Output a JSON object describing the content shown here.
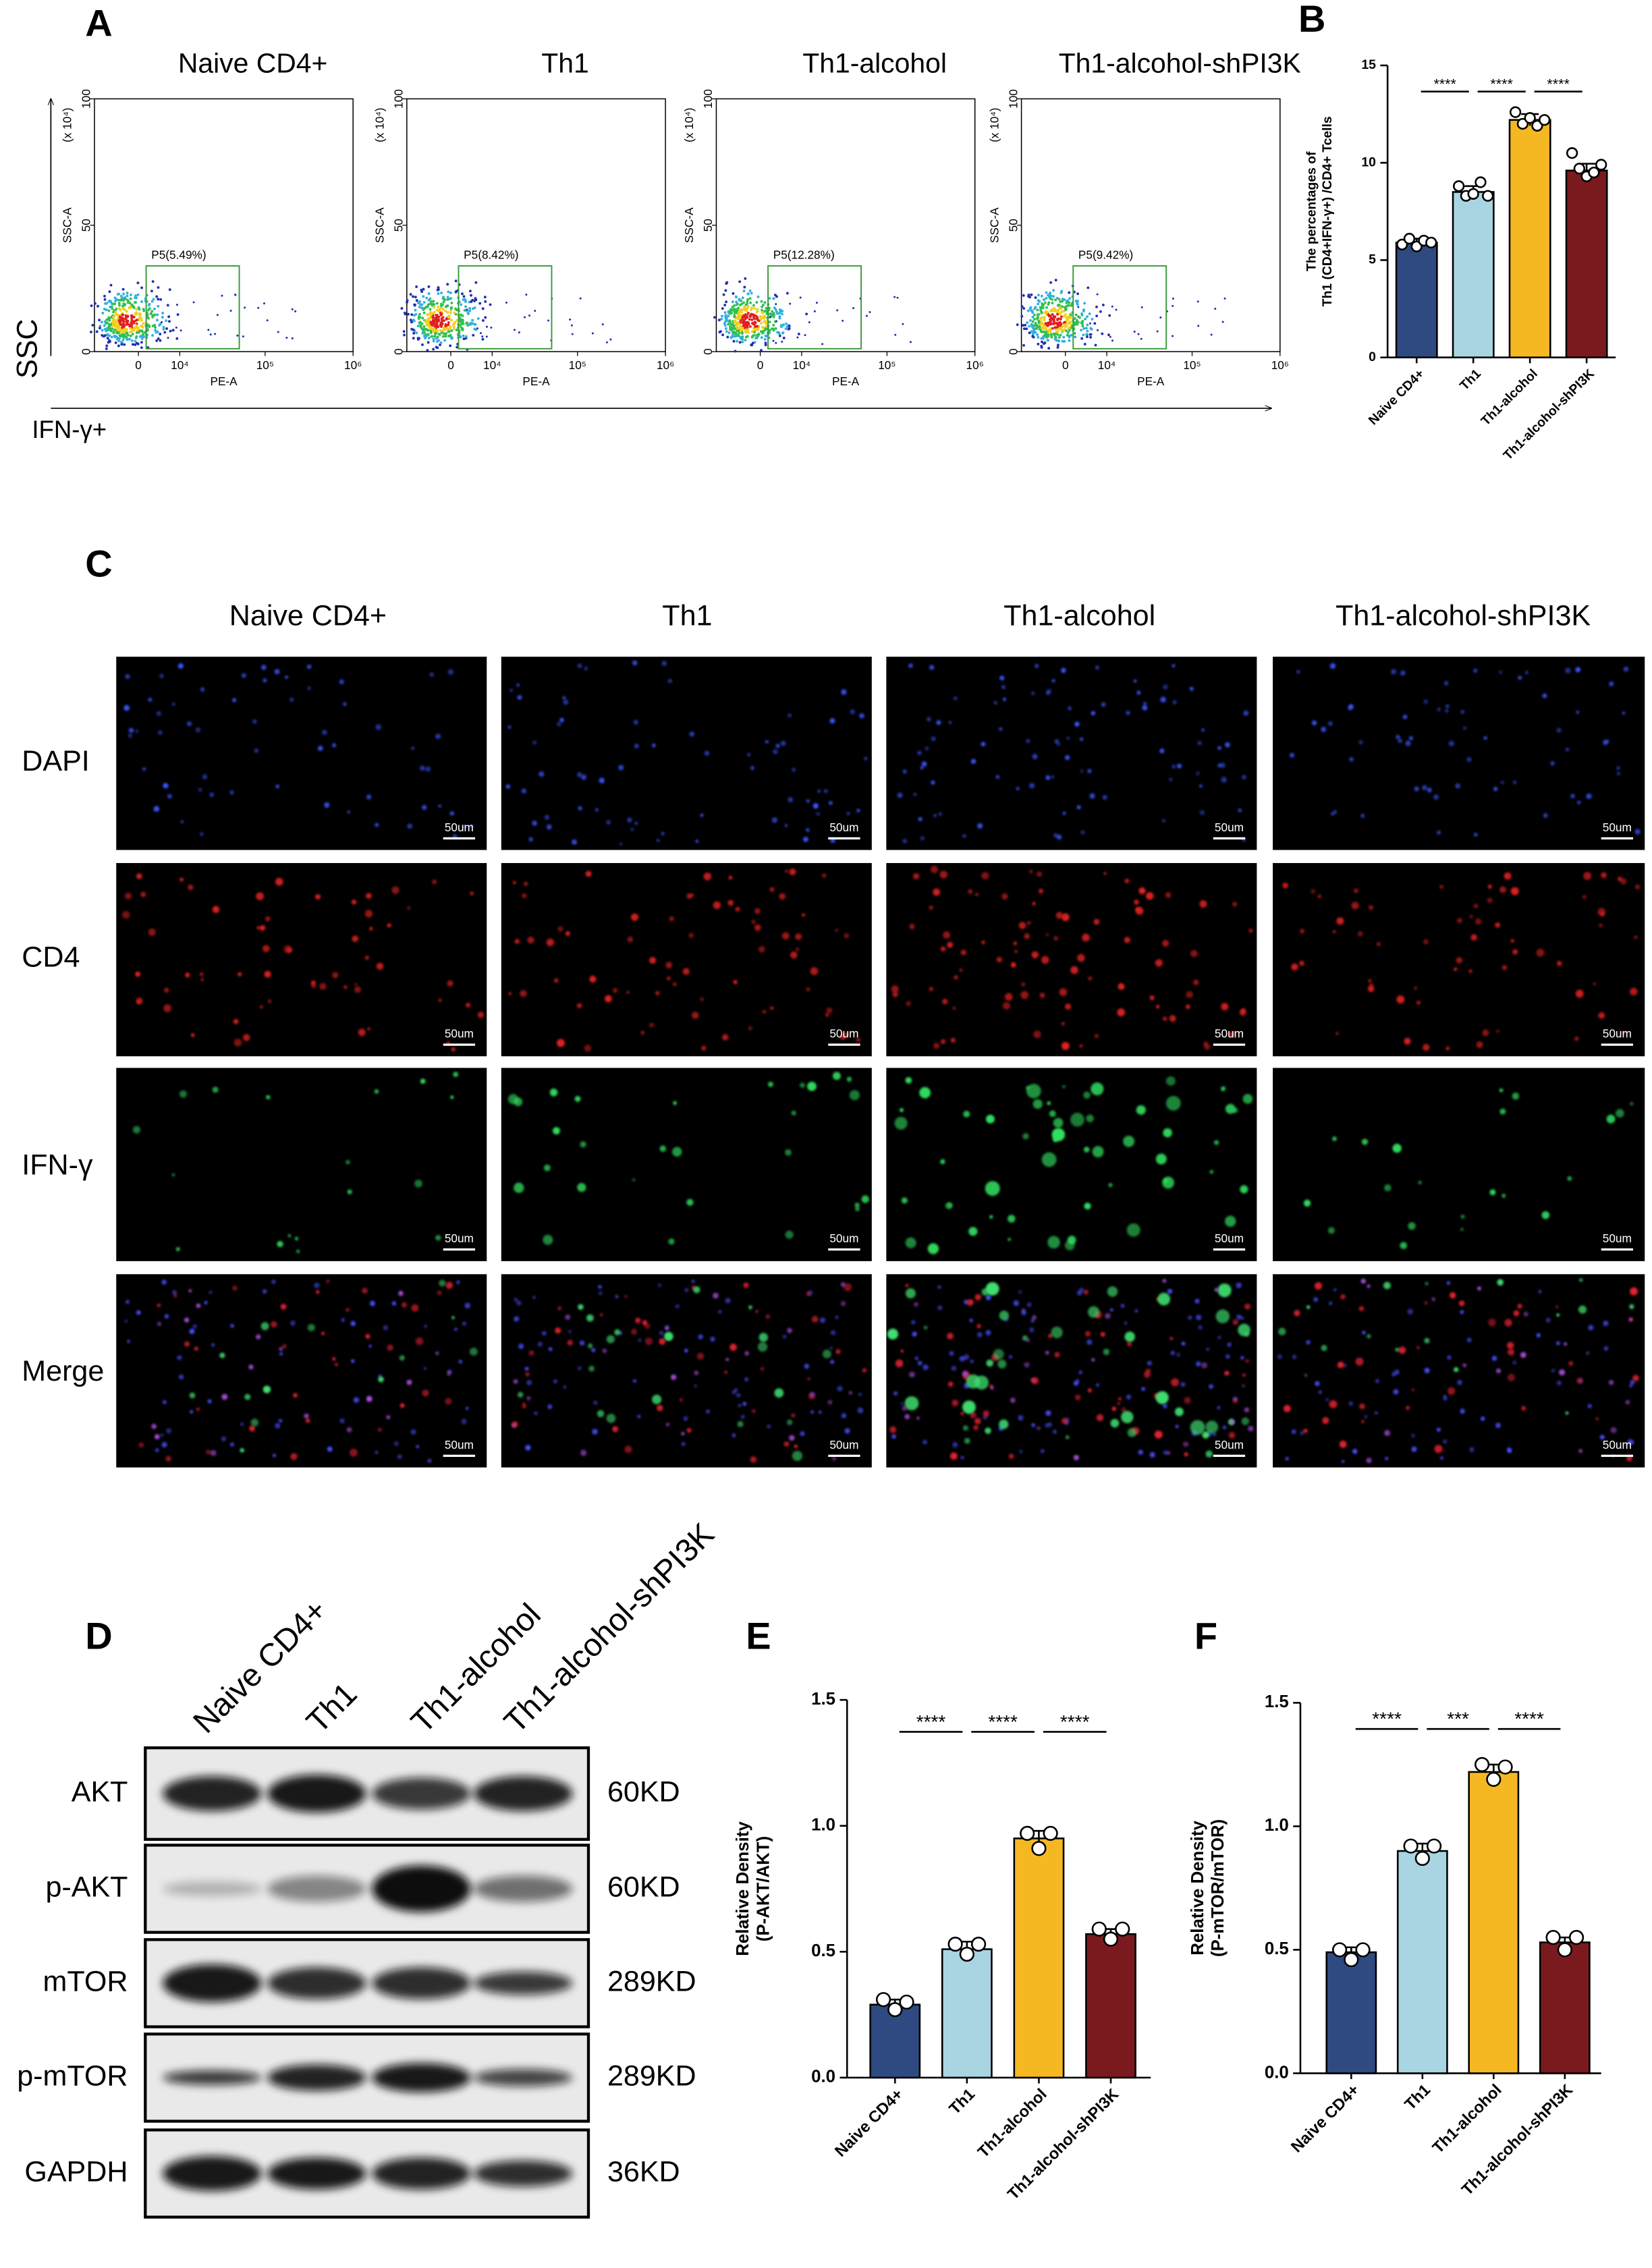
{
  "panel_labels": [
    "A",
    "B",
    "C",
    "D",
    "E",
    "F"
  ],
  "flow": {
    "y_axis_label": "SSC",
    "x_axis_label": "IFN-γ+",
    "plot_y_label": "SSC-A",
    "plot_x_label": "PE-A",
    "y_scale_note": "(x 10⁴)",
    "yticks": [
      "0",
      "50",
      "100"
    ],
    "xticks": [
      "0",
      "10⁴",
      "10⁵",
      "10⁶"
    ],
    "plots": [
      {
        "title": "Naive CD4+",
        "gate": "P5(5.49%)"
      },
      {
        "title": "Th1",
        "gate": "P5(8.42%)"
      },
      {
        "title": "Th1-alcohol",
        "gate": "P5(12.28%)"
      },
      {
        "title": "Th1-alcohol-shPI3K",
        "gate": "P5(9.42%)"
      }
    ]
  },
  "chart_data": [
    {
      "type": "bar",
      "ylabel": [
        "The percentages of",
        "Th1 (CD4+IFN-γ+) /CD4+ Tcells"
      ],
      "categories": [
        "Naive CD4+",
        "Th1",
        "Th1-alcohol",
        "Th1-alcohol-shPI3K"
      ],
      "values": [
        5.9,
        8.5,
        12.2,
        9.6
      ],
      "errors": [
        0.2,
        0.3,
        0.3,
        0.35
      ],
      "points": [
        [
          5.8,
          6.1,
          5.7,
          6.0,
          5.9
        ],
        [
          8.8,
          8.3,
          8.4,
          9.0,
          8.3
        ],
        [
          12.6,
          12.0,
          12.3,
          11.9,
          12.2
        ],
        [
          10.5,
          9.7,
          9.3,
          9.5,
          9.9
        ]
      ],
      "colors": [
        "#2e4a80",
        "#a9d5e2",
        "#f5b822",
        "#7a1a1f"
      ],
      "significance": [
        "****",
        "****",
        "****"
      ],
      "ylim": [
        0,
        15
      ],
      "yticks": [
        0,
        5,
        10,
        15
      ]
    },
    {
      "type": "bar",
      "ylabel": [
        "Relative Density",
        "(P-AKT/AKT)"
      ],
      "categories": [
        "Naive CD4+",
        "Th1",
        "Th1-alcohol",
        "Th1-alcohol-shPI3K"
      ],
      "values": [
        0.29,
        0.51,
        0.95,
        0.57
      ],
      "errors": [
        0.02,
        0.03,
        0.03,
        0.02
      ],
      "points": [
        [
          0.31,
          0.27,
          0.3
        ],
        [
          0.53,
          0.49,
          0.53
        ],
        [
          0.97,
          0.91,
          0.97
        ],
        [
          0.59,
          0.55,
          0.59
        ]
      ],
      "colors": [
        "#2e4a80",
        "#a9d5e2",
        "#f5b822",
        "#7a1a1f"
      ],
      "significance": [
        "****",
        "****",
        "****"
      ],
      "ylim": [
        0,
        1.5
      ],
      "yticks": [
        {
          "value": 0,
          "label": "0.0"
        },
        0.5,
        {
          "value": 1,
          "label": "1.0"
        },
        1.5
      ]
    },
    {
      "type": "bar",
      "ylabel": [
        "Relative Density",
        "(P-mTOR/mTOR)"
      ],
      "categories": [
        "Naive CD4+",
        "Th1",
        "Th1-alcohol",
        "Th1-alcohol-shPI3K"
      ],
      "values": [
        0.49,
        0.9,
        1.22,
        0.53
      ],
      "errors": [
        0.02,
        0.03,
        0.03,
        0.02
      ],
      "points": [
        [
          0.5,
          0.46,
          0.5
        ],
        [
          0.92,
          0.87,
          0.92
        ],
        [
          1.25,
          1.19,
          1.24
        ],
        [
          0.55,
          0.5,
          0.55
        ]
      ],
      "colors": [
        "#2e4a80",
        "#a9d5e2",
        "#f5b822",
        "#7a1a1f"
      ],
      "significance": [
        "****",
        "***",
        "****"
      ],
      "ylim": [
        0,
        1.5
      ],
      "yticks": [
        {
          "value": 0,
          "label": "0.0"
        },
        0.5,
        {
          "value": 1,
          "label": "1.0"
        },
        1.5
      ]
    }
  ],
  "microscopy": {
    "columns": [
      "Naive CD4+",
      "Th1",
      "Th1-alcohol",
      "Th1-alcohol-shPI3K"
    ],
    "rows": [
      "DAPI",
      "CD4",
      "IFN-γ",
      "Merge"
    ],
    "scale_bar": "50um"
  },
  "blot": {
    "lanes": [
      "Naive CD4+",
      "Th1",
      "Th1-alcohol",
      "Th1-alcohol-shPI3K"
    ],
    "rows": [
      {
        "name": "AKT",
        "size": "60KD"
      },
      {
        "name": "p-AKT",
        "size": "60KD"
      },
      {
        "name": "mTOR",
        "size": "289KD"
      },
      {
        "name": "p-mTOR",
        "size": "289KD"
      },
      {
        "name": "GAPDH",
        "size": "36KD"
      }
    ]
  }
}
